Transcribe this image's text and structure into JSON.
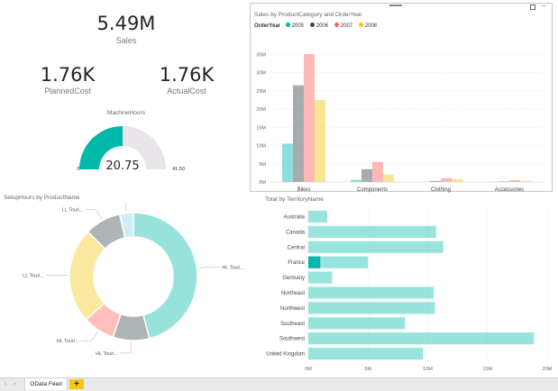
{
  "kpis": {
    "sales": {
      "value": "5.49M",
      "label": "Sales"
    },
    "planned": {
      "value": "1.76K",
      "label": "PlannedCost"
    },
    "actual": {
      "value": "1.76K",
      "label": "ActualCost"
    }
  },
  "gauge": {
    "title": "MachineHours",
    "value": "20.75",
    "min_label": "0",
    "max_label": "41.50",
    "fraction": 0.5,
    "color": "#01b8aa",
    "track_color": "#e9e5ea"
  },
  "visual_header": {
    "menu_icon": "drag-handle-icon",
    "focus_icon": "focus-mode-icon",
    "more_icon": "more-options-icon"
  },
  "chart_data": [
    {
      "type": "bar",
      "title": "Sales by ProductCategory and OrderYear",
      "legend_title": "OrderYear",
      "legend_position": "top-left",
      "categories": [
        "Bikes",
        "Components",
        "Clothing",
        "Accessories"
      ],
      "series": [
        {
          "name": "2005",
          "color": "#01b8aa",
          "values": [
            10.5,
            0.6,
            0.1,
            0.05
          ]
        },
        {
          "name": "2006",
          "color": "#374649",
          "values": [
            26.5,
            3.5,
            0.3,
            0.15
          ]
        },
        {
          "name": "2007",
          "color": "#fd625e",
          "values": [
            35,
            5.5,
            1.0,
            0.5
          ]
        },
        {
          "name": "2008",
          "color": "#f2c80f",
          "values": [
            22.5,
            2.0,
            0.8,
            0.3
          ]
        }
      ],
      "ylim": [
        0,
        40
      ],
      "yticks": [
        "0M",
        "5M",
        "10M",
        "15M",
        "20M",
        "25M",
        "30M",
        "35M"
      ],
      "grid": true,
      "faded": true
    },
    {
      "type": "pie",
      "title": "SetupHours by ProductName",
      "donut": true,
      "slices": [
        {
          "label": "HL Touri...",
          "value": 40,
          "color": "#01b8aa"
        },
        {
          "label": "HL Touri...",
          "value": 8,
          "color": "#374649"
        },
        {
          "label": "HL Touri...",
          "value": 7,
          "color": "#fd625e"
        },
        {
          "label": "LL Touri...",
          "value": 21,
          "color": "#f2c80f"
        },
        {
          "label": "LL Touri...",
          "value": 8,
          "color": "#374649"
        },
        {
          "label": "LL Touri...",
          "value": 3,
          "color": "#8ad4eb"
        }
      ],
      "faded": true
    },
    {
      "type": "bar",
      "orientation": "horizontal",
      "title": "Total by TerritoryName",
      "categories": [
        "Australia",
        "Canada",
        "Central",
        "France",
        "Germany",
        "Northeast",
        "Northwest",
        "Southeast",
        "Southwest",
        "United Kingdom"
      ],
      "values": [
        1.6,
        10.7,
        11.3,
        5.0,
        2.0,
        10.5,
        10.6,
        8.1,
        18.9,
        9.6
      ],
      "highlight": {
        "category": "France",
        "value": 1.0
      },
      "color": "#01b8aa",
      "xlim": [
        0,
        20
      ],
      "xticks": [
        "0M",
        "5M",
        "10M",
        "15M",
        "20M"
      ],
      "grid": true
    }
  ],
  "tabs": {
    "active": "OData Feed",
    "add": "+",
    "prev_icon": "chevron-left-icon",
    "next_icon": "chevron-right-icon"
  }
}
